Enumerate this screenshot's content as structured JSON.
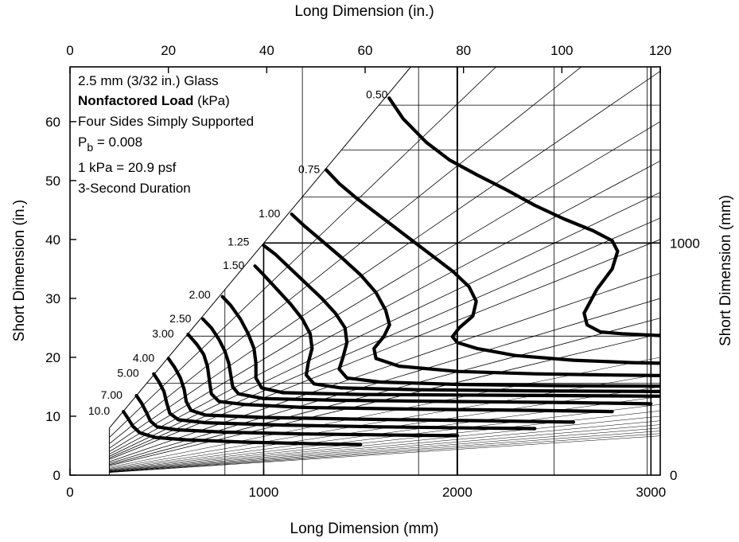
{
  "chart_data": {
    "type": "line",
    "axes": {
      "bottom": {
        "label": "Long Dimension (mm)",
        "range": [
          0,
          3048
        ],
        "ticks": [
          "0",
          "1000",
          "2000",
          "3000"
        ]
      },
      "top": {
        "label": "Long Dimension  (in.)",
        "range": [
          0,
          120
        ],
        "ticks": [
          "0",
          "20",
          "40",
          "60",
          "80",
          "100",
          "120"
        ]
      },
      "left": {
        "label": "Short Dimension (in.)",
        "range": [
          0,
          69.3
        ],
        "ticks": [
          "0",
          "10",
          "20",
          "30",
          "40",
          "50",
          "60"
        ]
      },
      "right": {
        "label": "Short Dimension (mm)",
        "ticks": [
          "0",
          "1000"
        ]
      }
    },
    "annotations": {
      "glass": "2.5 mm (3/32 in.) Glass",
      "load_bold": "Nonfactored Load",
      "load_unit": " (kPa)",
      "support": "Four Sides Simply Supported",
      "pb_p": "P",
      "pb_sub": "b",
      "pb_val": " = 0.008",
      "conversion": "1 kPa = 20.9 psf",
      "duration": "3-Second Duration"
    },
    "series": [
      {
        "name": "0.50",
        "points": [
          [
            1648,
            64.0
          ],
          [
            1720,
            60.5
          ],
          [
            1840,
            56.5
          ],
          [
            1960,
            53.5
          ],
          [
            2100,
            51.0
          ],
          [
            2250,
            48.5
          ],
          [
            2400,
            45.8
          ],
          [
            2550,
            43.5
          ],
          [
            2700,
            41.5
          ],
          [
            2800,
            39.8
          ],
          [
            2828,
            38.0
          ],
          [
            2800,
            35.0
          ],
          [
            2720,
            31.5
          ],
          [
            2655,
            27.5
          ],
          [
            2670,
            25.5
          ],
          [
            2740,
            24.3
          ],
          [
            2850,
            24.0
          ],
          [
            2980,
            23.8
          ],
          [
            3048,
            23.7
          ]
        ]
      },
      {
        "name": "0.75",
        "points": [
          [
            1323,
            51.8
          ],
          [
            1390,
            49.5
          ],
          [
            1480,
            47.0
          ],
          [
            1580,
            44.5
          ],
          [
            1680,
            42.0
          ],
          [
            1780,
            39.5
          ],
          [
            1880,
            37.0
          ],
          [
            1980,
            34.5
          ],
          [
            2060,
            32.0
          ],
          [
            2098,
            29.5
          ],
          [
            2080,
            27.0
          ],
          [
            2010,
            25.0
          ],
          [
            1975,
            23.5
          ],
          [
            2000,
            22.5
          ],
          [
            2100,
            21.5
          ],
          [
            2300,
            20.3
          ],
          [
            2600,
            19.5
          ],
          [
            2900,
            19.1
          ],
          [
            3048,
            19.0
          ]
        ]
      },
      {
        "name": "1.00",
        "points": [
          [
            1145,
            44.3
          ],
          [
            1210,
            42.3
          ],
          [
            1300,
            39.8
          ],
          [
            1400,
            37.0
          ],
          [
            1500,
            34.0
          ],
          [
            1580,
            31.0
          ],
          [
            1630,
            28.0
          ],
          [
            1650,
            25.5
          ],
          [
            1620,
            23.5
          ],
          [
            1570,
            21.5
          ],
          [
            1580,
            19.8
          ],
          [
            1700,
            18.5
          ],
          [
            2000,
            17.6
          ],
          [
            2400,
            17.2
          ],
          [
            2800,
            17.0
          ],
          [
            3048,
            16.9
          ]
        ]
      },
      {
        "name": "1.25",
        "points": [
          [
            1000,
            39.0
          ],
          [
            1060,
            37.5
          ],
          [
            1140,
            35.0
          ],
          [
            1220,
            32.5
          ],
          [
            1300,
            30.0
          ],
          [
            1370,
            27.5
          ],
          [
            1420,
            25.0
          ],
          [
            1430,
            22.5
          ],
          [
            1410,
            20.0
          ],
          [
            1390,
            18.0
          ],
          [
            1430,
            16.5
          ],
          [
            1600,
            15.8
          ],
          [
            2000,
            15.4
          ],
          [
            2500,
            15.2
          ],
          [
            3048,
            15.1
          ]
        ]
      },
      {
        "name": "1.50",
        "points": [
          [
            955,
            35.5
          ],
          [
            1000,
            34.0
          ],
          [
            1070,
            31.5
          ],
          [
            1140,
            29.0
          ],
          [
            1200,
            26.5
          ],
          [
            1240,
            24.0
          ],
          [
            1250,
            21.5
          ],
          [
            1230,
            19.0
          ],
          [
            1220,
            17.0
          ],
          [
            1260,
            15.5
          ],
          [
            1400,
            14.8
          ],
          [
            1800,
            14.5
          ],
          [
            2400,
            14.3
          ],
          [
            3048,
            14.2
          ]
        ]
      },
      {
        "name": "2.00",
        "points": [
          [
            787,
            30.3
          ],
          [
            830,
            28.8
          ],
          [
            880,
            26.5
          ],
          [
            920,
            24.0
          ],
          [
            950,
            21.5
          ],
          [
            960,
            19.0
          ],
          [
            960,
            16.5
          ],
          [
            990,
            14.8
          ],
          [
            1100,
            14.0
          ],
          [
            1500,
            13.7
          ],
          [
            2000,
            13.6
          ],
          [
            2600,
            13.5
          ],
          [
            3048,
            13.4
          ]
        ]
      },
      {
        "name": "2.50",
        "points": [
          [
            686,
            26.5
          ],
          [
            730,
            25.0
          ],
          [
            770,
            23.0
          ],
          [
            800,
            21.0
          ],
          [
            820,
            19.0
          ],
          [
            830,
            17.0
          ],
          [
            840,
            15.0
          ],
          [
            870,
            13.8
          ],
          [
            1000,
            13.0
          ],
          [
            1400,
            12.7
          ],
          [
            2000,
            12.5
          ],
          [
            2600,
            12.3
          ],
          [
            3000,
            12.1
          ]
        ]
      },
      {
        "name": "3.00",
        "points": [
          [
            610,
            23.9
          ],
          [
            655,
            22.2
          ],
          [
            690,
            20.5
          ],
          [
            710,
            18.5
          ],
          [
            720,
            16.0
          ],
          [
            730,
            13.8
          ],
          [
            770,
            12.5
          ],
          [
            900,
            12.0
          ],
          [
            1200,
            11.5
          ],
          [
            1800,
            11.2
          ],
          [
            2400,
            11.0
          ],
          [
            2800,
            10.8
          ]
        ]
      },
      {
        "name": "4.00",
        "points": [
          [
            508,
            19.8
          ],
          [
            540,
            18.3
          ],
          [
            570,
            16.5
          ],
          [
            590,
            14.5
          ],
          [
            600,
            12.5
          ],
          [
            625,
            11.0
          ],
          [
            700,
            10.2
          ],
          [
            1000,
            9.8
          ],
          [
            1500,
            9.5
          ],
          [
            2200,
            9.2
          ],
          [
            2600,
            9.0
          ]
        ]
      },
      {
        "name": "5.00",
        "points": [
          [
            432,
            17.2
          ],
          [
            460,
            15.8
          ],
          [
            485,
            14.2
          ],
          [
            500,
            12.2
          ],
          [
            515,
            10.5
          ],
          [
            560,
            9.4
          ],
          [
            700,
            8.9
          ],
          [
            1100,
            8.5
          ],
          [
            1600,
            8.2
          ],
          [
            2100,
            8.0
          ],
          [
            2400,
            7.9
          ]
        ]
      },
      {
        "name": "7.00",
        "points": [
          [
            343,
            13.5
          ],
          [
            370,
            12.2
          ],
          [
            395,
            10.6
          ],
          [
            415,
            9.2
          ],
          [
            450,
            8.2
          ],
          [
            550,
            7.7
          ],
          [
            800,
            7.3
          ],
          [
            1200,
            7.0
          ],
          [
            1700,
            6.8
          ],
          [
            2000,
            6.7
          ]
        ]
      },
      {
        "name": "10.0",
        "points": [
          [
            276,
            10.8
          ],
          [
            300,
            9.6
          ],
          [
            325,
            8.3
          ],
          [
            360,
            7.2
          ],
          [
            440,
            6.4
          ],
          [
            600,
            6.0
          ],
          [
            900,
            5.6
          ],
          [
            1300,
            5.3
          ],
          [
            1500,
            5.2
          ]
        ]
      }
    ],
    "curve_label_positions": [
      [
        1585,
        64.5
      ],
      [
        1235,
        51.8
      ],
      [
        1030,
        44.3
      ],
      [
        870,
        39.5
      ],
      [
        845,
        35.5
      ],
      [
        670,
        30.5
      ],
      [
        570,
        26.5
      ],
      [
        480,
        23.9
      ],
      [
        380,
        19.8
      ],
      [
        300,
        17.2
      ],
      [
        215,
        13.5
      ],
      [
        150,
        10.8
      ]
    ],
    "aspect_ratio_rays": [
      1,
      1.25,
      1.5,
      1.75,
      2,
      2.25,
      2.5,
      2.75,
      3,
      3.5,
      4,
      4.5,
      5
    ],
    "min_dimension_mm": 203,
    "grid_vertical_mm": [
      800,
      1200,
      1800,
      1000,
      2000,
      2500,
      3000,
      2980
    ],
    "grid_horizontal_in": [
      15.6,
      23.6,
      47.2,
      55.2,
      62.8,
      39.4
    ]
  }
}
